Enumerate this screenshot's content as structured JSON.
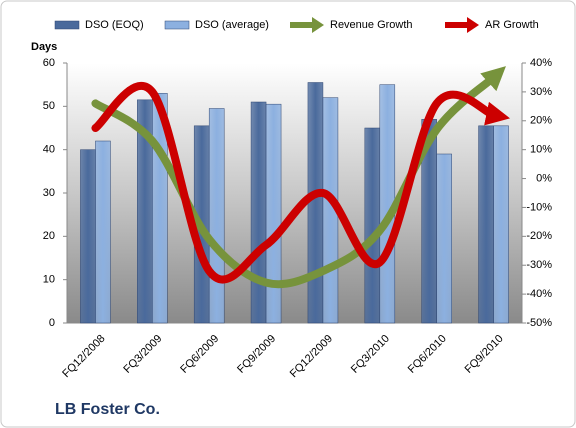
{
  "chart_data": {
    "type": "bar-line",
    "title": "LB Foster Co.",
    "y_axis_label": "Days",
    "categories": [
      "FQ12/2008",
      "FQ3/2009",
      "FQ6/2009",
      "FQ9/2009",
      "FQ12/2009",
      "FQ3/2010",
      "FQ6/2010",
      "FQ9/2010"
    ],
    "series": [
      {
        "name": "DSO (EOQ)",
        "kind": "bar",
        "color": "#4a6a9c",
        "values": [
          40,
          51.5,
          45.5,
          51,
          55.5,
          45,
          47,
          45.5
        ]
      },
      {
        "name": "DSO (average)",
        "kind": "bar",
        "color": "#8cb0e0",
        "values": [
          42,
          53,
          49.5,
          50.5,
          52,
          55,
          39,
          45.5
        ]
      },
      {
        "name": "Revenue Growth",
        "kind": "line",
        "axis": "y2",
        "color": "#77933c",
        "values": [
          26,
          13,
          -21,
          -36,
          -32,
          -18,
          17,
          35
        ]
      },
      {
        "name": "AR Growth",
        "kind": "line",
        "axis": "y2",
        "color": "#cc0000",
        "values": [
          17.5,
          30,
          -32,
          -23,
          -5,
          -29,
          26,
          22
        ]
      }
    ],
    "ylim": [
      0,
      60
    ],
    "yticks": [
      0,
      10,
      20,
      30,
      40,
      50,
      60
    ],
    "y2lim": [
      -50,
      40
    ],
    "y2ticks": [
      {
        "value": -50,
        "label": "-50%"
      },
      {
        "value": -40,
        "label": "-40%"
      },
      {
        "value": -30,
        "label": "-30%"
      },
      {
        "value": -20,
        "label": "-20%"
      },
      {
        "value": -10,
        "label": "-10%"
      },
      {
        "value": 0,
        "label": "0%"
      },
      {
        "value": 10,
        "label": "10%"
      },
      {
        "value": 20,
        "label": "20%"
      },
      {
        "value": 30,
        "label": "30%"
      },
      {
        "value": 40,
        "label": "40%"
      }
    ]
  }
}
